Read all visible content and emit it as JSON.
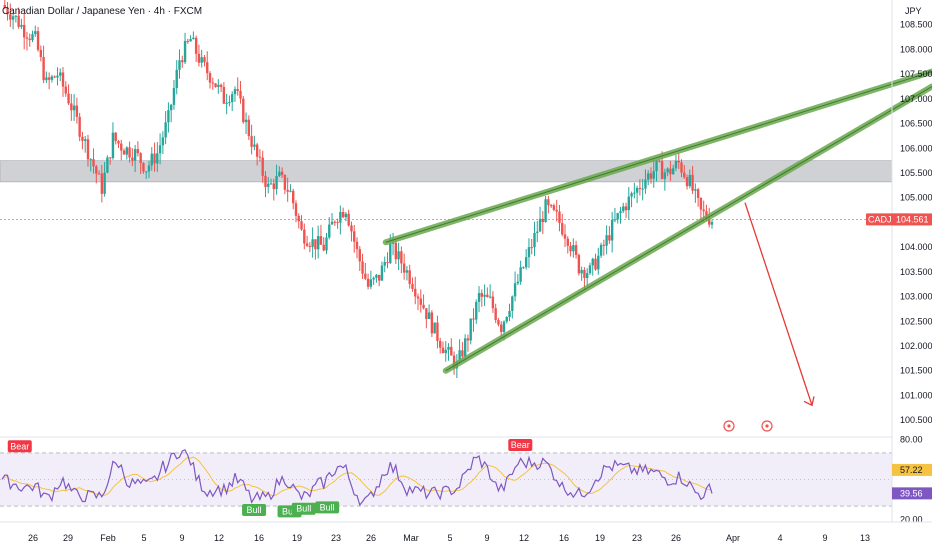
{
  "title": "Canadian Dollar / Japanese Yen · 4h · FXCM",
  "currency": "JPY",
  "colors": {
    "up": "#26a69a",
    "down": "#ef5350",
    "wedge": "#6aa84f",
    "zone": "#b2b5be",
    "arrow": "#e53935",
    "rsi_line": "#7e57c2",
    "rsi_ma": "#f5c242",
    "rsi_band": "#ede7f6",
    "bull": "#4caf50",
    "bear": "#f23645"
  },
  "chart_data": [
    {
      "type": "candlestick",
      "symbol": "CADJPY",
      "last_price": "104.561",
      "ylim": [
        100.2,
        109.0
      ],
      "y_ticks": [
        "108.500",
        "108.000",
        "107.500",
        "107.000",
        "106.500",
        "106.000",
        "105.500",
        "105.000",
        "104.000",
        "103.500",
        "103.000",
        "102.500",
        "102.000",
        "101.500",
        "101.000",
        "100.500"
      ],
      "x_ticks": [
        "26",
        "29",
        "Feb",
        "5",
        "9",
        "12",
        "16",
        "19",
        "23",
        "26",
        "Mar",
        "5",
        "9",
        "12",
        "16",
        "19",
        "23",
        "26",
        "Apr",
        "4",
        "9",
        "13"
      ],
      "resistance_zone": [
        105.32,
        105.75
      ],
      "close_path": [
        [
          0,
          108.9
        ],
        [
          4,
          108.7
        ],
        [
          8,
          108.4
        ],
        [
          12,
          108.2
        ],
        [
          16,
          107.3
        ],
        [
          20,
          107.5
        ],
        [
          24,
          107.0
        ],
        [
          28,
          106.4
        ],
        [
          32,
          105.8
        ],
        [
          36,
          105.2
        ],
        [
          40,
          106.2
        ],
        [
          44,
          106.0
        ],
        [
          48,
          105.9
        ],
        [
          52,
          105.6
        ],
        [
          56,
          105.9
        ],
        [
          60,
          106.6
        ],
        [
          64,
          107.8
        ],
        [
          68,
          108.2
        ],
        [
          72,
          107.7
        ],
        [
          76,
          107.4
        ],
        [
          80,
          107.0
        ],
        [
          84,
          107.2
        ],
        [
          88,
          106.5
        ],
        [
          92,
          105.8
        ],
        [
          96,
          105.2
        ],
        [
          100,
          105.4
        ],
        [
          104,
          105.1
        ],
        [
          108,
          104.3
        ],
        [
          112,
          104.1
        ],
        [
          116,
          104.0
        ],
        [
          120,
          104.6
        ],
        [
          124,
          104.8
        ],
        [
          128,
          103.9
        ],
        [
          132,
          103.2
        ],
        [
          136,
          103.4
        ],
        [
          140,
          104.0
        ],
        [
          144,
          103.7
        ],
        [
          148,
          103.3
        ],
        [
          152,
          102.8
        ],
        [
          156,
          102.3
        ],
        [
          160,
          101.9
        ],
        [
          164,
          101.6
        ],
        [
          168,
          102.2
        ],
        [
          172,
          103.0
        ],
        [
          176,
          102.9
        ],
        [
          180,
          102.4
        ],
        [
          184,
          103.0
        ],
        [
          188,
          103.6
        ],
        [
          192,
          104.2
        ],
        [
          196,
          104.8
        ],
        [
          200,
          104.6
        ],
        [
          204,
          104.2
        ],
        [
          208,
          103.6
        ],
        [
          212,
          103.5
        ],
        [
          216,
          103.9
        ],
        [
          220,
          104.4
        ],
        [
          224,
          104.8
        ],
        [
          228,
          105.1
        ],
        [
          232,
          105.4
        ],
        [
          236,
          105.6
        ],
        [
          240,
          105.5
        ],
        [
          244,
          105.7
        ],
        [
          248,
          105.3
        ],
        [
          252,
          104.7
        ],
        [
          256,
          104.56
        ]
      ],
      "rising_wedge": {
        "upper": [
          [
            0,
            104.1
          ],
          [
            1,
            107.55
          ]
        ],
        "lower": [
          [
            0,
            101.5
          ],
          [
            1,
            107.25
          ]
        ]
      },
      "projection_arrow": "down",
      "event_icons": 2
    },
    {
      "type": "line",
      "indicator": "RSI",
      "ylim": [
        18,
        82
      ],
      "y_ticks": [
        "80.00",
        "20.00"
      ],
      "levels": [
        70,
        50,
        30
      ],
      "rsi_value": "39.56",
      "ma_value": "57.22",
      "labels": [
        {
          "text": "Bear",
          "pos": 0.025,
          "level": 75
        },
        {
          "text": "Bull",
          "pos": 0.355,
          "level": 27
        },
        {
          "text": "Bull",
          "pos": 0.405,
          "level": 26
        },
        {
          "text": "Bull",
          "pos": 0.425,
          "level": 28
        },
        {
          "text": "Bull",
          "pos": 0.458,
          "level": 29
        },
        {
          "text": "Bear",
          "pos": 0.73,
          "level": 76
        }
      ]
    }
  ]
}
